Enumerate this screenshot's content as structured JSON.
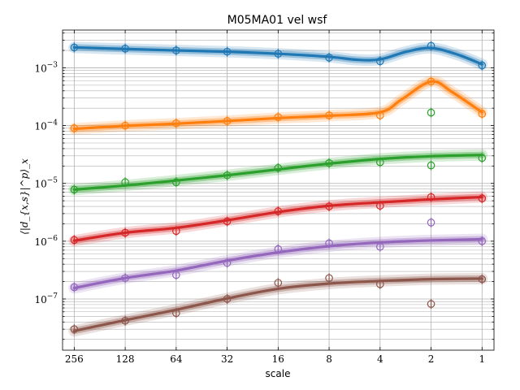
{
  "chart_data": {
    "type": "line",
    "title": "M05MA01 vel wsf",
    "xlabel": "scale",
    "ylabel": "⟨|d_{x,s}|^p⟩_x",
    "x_scale": "log2-reversed",
    "y_scale": "log",
    "x_ticks": [
      256,
      128,
      64,
      32,
      16,
      8,
      4,
      2,
      1
    ],
    "x_tick_labels": [
      "256",
      "128",
      "64",
      "32",
      "16",
      "8",
      "4",
      "2",
      "1"
    ],
    "xlim": [
      300,
      0.85
    ],
    "ylim": [
      1.3e-08,
      0.0045
    ],
    "y_tick_labels": [
      {
        "value": 0.001,
        "base": "10",
        "exp": "−3"
      },
      {
        "value": 0.0001,
        "base": "10",
        "exp": "−4"
      },
      {
        "value": 1e-05,
        "base": "10",
        "exp": "−5"
      },
      {
        "value": 1e-06,
        "base": "10",
        "exp": "−6"
      },
      {
        "value": 1e-07,
        "base": "10",
        "exp": "−7"
      }
    ],
    "grid": true,
    "x": [
      256,
      128,
      64,
      32,
      16,
      8,
      4,
      2,
      1
    ],
    "series": [
      {
        "color": "#1f77b4",
        "points": [
          0.00225,
          0.00215,
          0.002,
          0.0019,
          0.00175,
          0.0015,
          0.0013,
          0.0024,
          0.0011
        ],
        "curve": [
          [
            256,
            0.00225
          ],
          [
            128,
            0.00212
          ],
          [
            64,
            0.002
          ],
          [
            32,
            0.0019
          ],
          [
            16,
            0.00175
          ],
          [
            8,
            0.00155
          ],
          [
            5.5,
            0.00138
          ],
          [
            4,
            0.0014
          ],
          [
            2.8,
            0.0019
          ],
          [
            2,
            0.0022
          ],
          [
            1.4,
            0.0017
          ],
          [
            1,
            0.00115
          ]
        ]
      },
      {
        "color": "#ff7f0e",
        "points": [
          9e-05,
          0.0001,
          0.00011,
          0.00012,
          0.00014,
          0.00015,
          0.00015,
          0.00058,
          0.00016
        ],
        "curve": [
          [
            256,
            8.8e-05
          ],
          [
            128,
            9.9e-05
          ],
          [
            64,
            0.000108
          ],
          [
            32,
            0.00012
          ],
          [
            16,
            0.000135
          ],
          [
            8,
            0.000148
          ],
          [
            4,
            0.00017
          ],
          [
            3,
            0.00028
          ],
          [
            2,
            0.00058
          ],
          [
            1.5,
            0.00038
          ],
          [
            1,
            0.00017
          ]
        ]
      },
      {
        "color": "#2ca02c",
        "points": [
          7.8e-06,
          1.05e-05,
          1.05e-05,
          1.38e-05,
          1.85e-05,
          2.25e-05,
          2.32e-05,
          0.000168,
          2.75e-05
        ],
        "extra_points": [
          {
            "x": 2,
            "y": 2.05e-05
          }
        ],
        "curve": [
          [
            256,
            7.8e-06
          ],
          [
            128,
            9.2e-06
          ],
          [
            64,
            1.12e-05
          ],
          [
            32,
            1.38e-05
          ],
          [
            16,
            1.75e-05
          ],
          [
            8,
            2.2e-05
          ],
          [
            4,
            2.65e-05
          ],
          [
            2,
            2.95e-05
          ],
          [
            1,
            3.1e-05
          ]
        ]
      },
      {
        "color": "#d62728",
        "points": [
          1.05e-06,
          1.4e-06,
          1.5e-06,
          2.2e-06,
          3.3e-06,
          4e-06,
          4.1e-06,
          5.8e-06,
          5.5e-06
        ],
        "curve": [
          [
            256,
            1.02e-06
          ],
          [
            128,
            1.4e-06
          ],
          [
            64,
            1.7e-06
          ],
          [
            32,
            2.3e-06
          ],
          [
            16,
            3.2e-06
          ],
          [
            8,
            4.1e-06
          ],
          [
            4,
            4.7e-06
          ],
          [
            2,
            5.3e-06
          ],
          [
            1,
            5.8e-06
          ]
        ]
      },
      {
        "color": "#9467bd",
        "points": [
          1.6e-07,
          2.3e-07,
          2.6e-07,
          4.2e-07,
          7.3e-07,
          9.2e-07,
          8e-07,
          2.1e-06,
          1e-06
        ],
        "curve": [
          [
            256,
            1.55e-07
          ],
          [
            128,
            2.3e-07
          ],
          [
            64,
            3.1e-07
          ],
          [
            32,
            4.6e-07
          ],
          [
            16,
            6.4e-07
          ],
          [
            8,
            8.2e-07
          ],
          [
            4,
            9.5e-07
          ],
          [
            2,
            1.03e-06
          ],
          [
            1,
            1.08e-06
          ]
        ]
      },
      {
        "color": "#8c564b",
        "points": [
          3e-08,
          4.2e-08,
          5.7e-08,
          1e-07,
          1.9e-07,
          2.3e-07,
          1.8e-07,
          8.2e-08,
          2.2e-07
        ],
        "curve": [
          [
            256,
            2.8e-08
          ],
          [
            128,
            4.3e-08
          ],
          [
            64,
            6.5e-08
          ],
          [
            32,
            1.02e-07
          ],
          [
            16,
            1.5e-07
          ],
          [
            8,
            1.85e-07
          ],
          [
            4,
            2.05e-07
          ],
          [
            2,
            2.2e-07
          ],
          [
            1,
            2.25e-07
          ]
        ]
      }
    ]
  }
}
